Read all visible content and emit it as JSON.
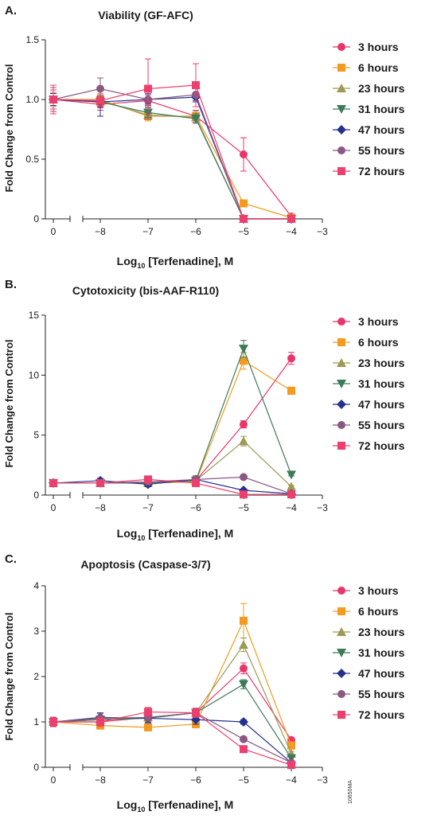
{
  "figure_code": "10650MA",
  "colors": {
    "3 hours": "#e8356a",
    "6 hours": "#f39a1f",
    "23 hours": "#9c9a55",
    "31 hours": "#3e7a5a",
    "47 hours": "#24318f",
    "55 hours": "#8a5882",
    "72 hours": "#ec3f6e"
  },
  "chart_data": [
    {
      "type": "line",
      "panel_label": "A.",
      "title": "Viability (GF-AFC)",
      "ylabel": "Fold Change from Control",
      "xlabel_main": "Log",
      "xlabel_sub": "10",
      "xlabel_rest": " [Terfenadine], M",
      "ylim": [
        0,
        1.5
      ],
      "yticks": [
        "0",
        "0.5",
        "1.0",
        "1.5"
      ],
      "ytick_values": [
        0,
        0.5,
        1.0,
        1.5
      ],
      "xticks": [
        "0",
        "−8",
        "−7",
        "−6",
        "−5",
        "−4",
        "−3"
      ],
      "x": [
        0,
        -8,
        -7,
        -6,
        -5,
        -4
      ],
      "legend_position": "right",
      "series": [
        {
          "name": "3 hours",
          "marker": "circle",
          "values": [
            1.0,
            0.96,
            0.99,
            0.86,
            0.54,
            0.02
          ],
          "err": [
            0.08,
            0.05,
            0.05,
            0.05,
            0.14,
            0.02
          ]
        },
        {
          "name": "6 hours",
          "marker": "square",
          "values": [
            1.0,
            1.0,
            0.86,
            0.86,
            0.13,
            0.01
          ],
          "err": [
            0.06,
            0.05,
            0.04,
            0.04,
            0.02,
            0.01
          ]
        },
        {
          "name": "23 hours",
          "marker": "triangle-up",
          "values": [
            1.0,
            0.99,
            0.87,
            0.85,
            0.0,
            0.0
          ],
          "err": [
            0.06,
            0.05,
            0.04,
            0.05,
            0.0,
            0.0
          ]
        },
        {
          "name": "31 hours",
          "marker": "triangle-down",
          "values": [
            1.0,
            0.98,
            0.89,
            0.84,
            0.0,
            0.0
          ],
          "err": [
            0.05,
            0.05,
            0.04,
            0.04,
            0.0,
            0.0
          ]
        },
        {
          "name": "47 hours",
          "marker": "diamond",
          "values": [
            1.0,
            0.98,
            1.0,
            1.02,
            0.0,
            0.0
          ],
          "err": [
            0.05,
            0.12,
            0.04,
            0.04,
            0.0,
            0.0
          ]
        },
        {
          "name": "55 hours",
          "marker": "circle",
          "values": [
            1.0,
            1.09,
            1.0,
            1.04,
            0.0,
            0.0
          ],
          "err": [
            0.1,
            0.09,
            0.05,
            0.05,
            0.0,
            0.0
          ]
        },
        {
          "name": "72 hours",
          "marker": "square",
          "values": [
            1.0,
            0.99,
            1.09,
            1.12,
            0.0,
            0.0
          ],
          "err": [
            0.12,
            0.05,
            0.25,
            0.18,
            0.0,
            0.0
          ]
        }
      ]
    },
    {
      "type": "line",
      "panel_label": "B.",
      "title": "Cytotoxicity (bis-AAF-R110)",
      "ylabel": "Fold Change from Control",
      "xlabel_main": "Log",
      "xlabel_sub": "10",
      "xlabel_rest": " [Terfenadine], M",
      "ylim": [
        0,
        15
      ],
      "yticks": [
        "0",
        "5",
        "10",
        "15"
      ],
      "ytick_values": [
        0,
        5,
        10,
        15
      ],
      "xticks": [
        "0",
        "−8",
        "−7",
        "−6",
        "−5",
        "−4",
        "−3"
      ],
      "x": [
        0,
        -8,
        -7,
        -6,
        -5,
        -4
      ],
      "legend_position": "right",
      "series": [
        {
          "name": "3 hours",
          "marker": "circle",
          "values": [
            1.0,
            1.0,
            1.1,
            1.2,
            5.9,
            11.4
          ],
          "err": [
            0.2,
            0.2,
            0.3,
            0.3,
            0.3,
            0.5
          ]
        },
        {
          "name": "6 hours",
          "marker": "square",
          "values": [
            1.0,
            1.0,
            1.0,
            1.1,
            11.2,
            8.7
          ],
          "err": [
            0.2,
            0.2,
            0.3,
            0.3,
            0.7,
            0.3
          ]
        },
        {
          "name": "23 hours",
          "marker": "triangle-up",
          "values": [
            1.0,
            1.0,
            1.0,
            1.2,
            4.5,
            0.7
          ],
          "err": [
            0.2,
            0.2,
            0.2,
            0.3,
            0.4,
            0.1
          ]
        },
        {
          "name": "31 hours",
          "marker": "triangle-down",
          "values": [
            1.0,
            1.0,
            1.0,
            1.2,
            12.2,
            1.7
          ],
          "err": [
            0.2,
            0.2,
            0.2,
            0.3,
            0.7,
            0.1
          ]
        },
        {
          "name": "47 hours",
          "marker": "diamond",
          "values": [
            1.0,
            1.2,
            0.9,
            1.3,
            0.4,
            0.1
          ],
          "err": [
            0.2,
            0.2,
            0.2,
            0.3,
            0.1,
            0.05
          ]
        },
        {
          "name": "55 hours",
          "marker": "circle",
          "values": [
            1.0,
            1.0,
            1.1,
            1.3,
            1.5,
            0.1
          ],
          "err": [
            0.2,
            0.2,
            0.2,
            0.3,
            0.1,
            0.05
          ]
        },
        {
          "name": "72 hours",
          "marker": "square",
          "values": [
            1.0,
            1.0,
            1.3,
            1.0,
            0.05,
            0.05
          ],
          "err": [
            0.2,
            0.2,
            0.3,
            0.2,
            0.05,
            0.05
          ]
        }
      ]
    },
    {
      "type": "line",
      "panel_label": "C.",
      "title": "Apoptosis (Caspase-3/7)",
      "ylabel": "Fold Change from Control",
      "xlabel_main": "Log",
      "xlabel_sub": "10",
      "xlabel_rest": " [Terfenadine], M",
      "ylim": [
        0,
        4
      ],
      "yticks": [
        "0",
        "1",
        "2",
        "3",
        "4"
      ],
      "ytick_values": [
        0,
        1,
        2,
        3,
        4
      ],
      "xticks": [
        "0",
        "−8",
        "−7",
        "−6",
        "−5",
        "−4",
        "−3"
      ],
      "x": [
        0,
        -8,
        -7,
        -6,
        -5,
        -4
      ],
      "legend_position": "right",
      "series": [
        {
          "name": "3 hours",
          "marker": "circle",
          "values": [
            1.0,
            1.0,
            1.1,
            1.2,
            2.18,
            0.6
          ],
          "err": [
            0.1,
            0.08,
            0.1,
            0.1,
            0.12,
            0.05
          ]
        },
        {
          "name": "6 hours",
          "marker": "square",
          "values": [
            1.0,
            0.92,
            0.88,
            0.95,
            3.23,
            0.48
          ],
          "err": [
            0.1,
            0.08,
            0.08,
            0.08,
            0.38,
            0.05
          ]
        },
        {
          "name": "23 hours",
          "marker": "triangle-up",
          "values": [
            1.0,
            1.05,
            1.1,
            1.2,
            2.7,
            0.3
          ],
          "err": [
            0.1,
            0.08,
            0.1,
            0.1,
            0.15,
            0.05
          ]
        },
        {
          "name": "31 hours",
          "marker": "triangle-down",
          "values": [
            1.0,
            1.05,
            1.08,
            1.2,
            1.83,
            0.2
          ],
          "err": [
            0.1,
            0.08,
            0.1,
            0.1,
            0.1,
            0.05
          ]
        },
        {
          "name": "47 hours",
          "marker": "diamond",
          "values": [
            1.0,
            1.1,
            1.08,
            1.05,
            1.0,
            0.1
          ],
          "err": [
            0.1,
            0.1,
            0.1,
            0.1,
            0.05,
            0.03
          ]
        },
        {
          "name": "55 hours",
          "marker": "circle",
          "values": [
            1.0,
            1.08,
            1.1,
            1.2,
            0.62,
            0.1
          ],
          "err": [
            0.1,
            0.1,
            0.1,
            0.1,
            0.05,
            0.03
          ]
        },
        {
          "name": "72 hours",
          "marker": "square",
          "values": [
            1.0,
            1.0,
            1.22,
            1.2,
            0.4,
            0.05
          ],
          "err": [
            0.1,
            0.1,
            0.1,
            0.1,
            0.05,
            0.03
          ]
        }
      ]
    }
  ]
}
